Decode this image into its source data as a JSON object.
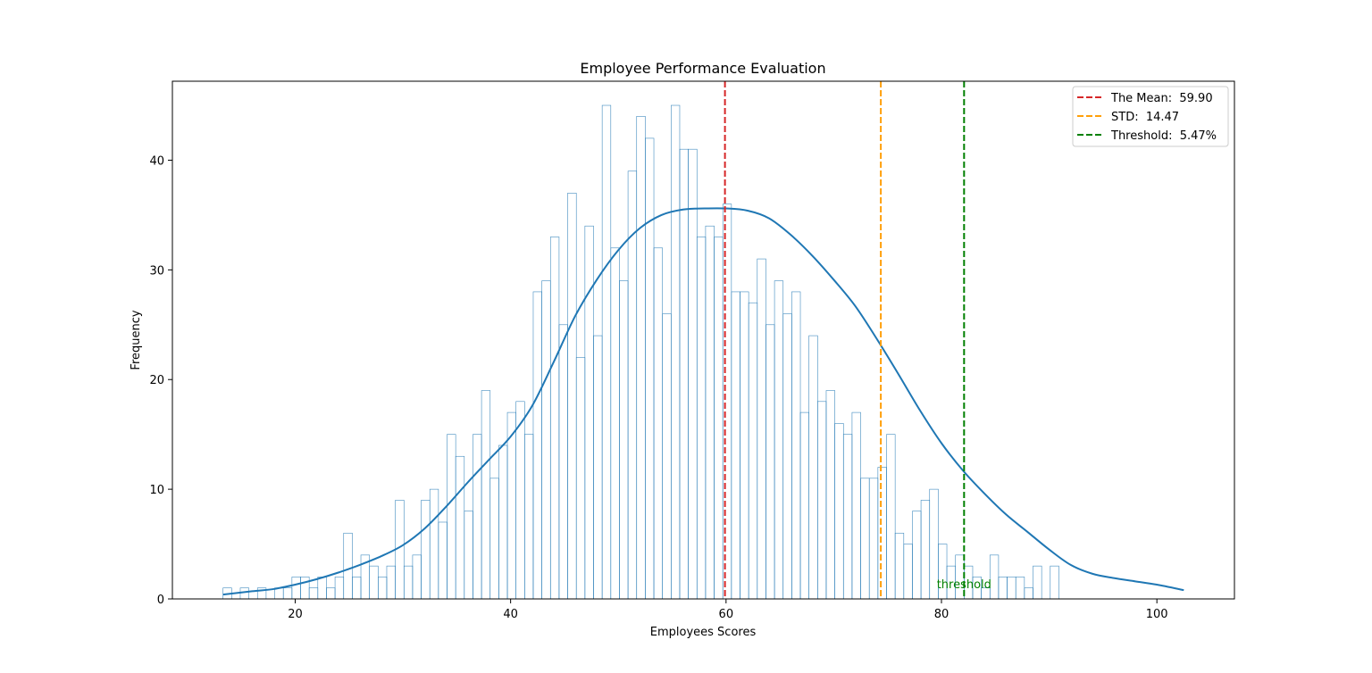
{
  "chart_data": {
    "type": "bar",
    "title": "Employee Performance Evaluation",
    "xlabel": "Employees Scores",
    "ylabel": "Frequency",
    "xlim": [
      8.6,
      107.2
    ],
    "ylim": [
      0,
      47.2
    ],
    "x_ticks": [
      20,
      40,
      60,
      80,
      100
    ],
    "y_ticks": [
      0,
      10,
      20,
      30,
      40
    ],
    "bins": {
      "start": 13.3,
      "width": 0.8,
      "counts": [
        1,
        0,
        1,
        0,
        1,
        0,
        1,
        1,
        2,
        2,
        1,
        2,
        1,
        2,
        6,
        2,
        4,
        3,
        2,
        3,
        9,
        3,
        4,
        9,
        10,
        7,
        15,
        13,
        8,
        15,
        19,
        11,
        14,
        17,
        18,
        15,
        28,
        29,
        33,
        25,
        37,
        22,
        34,
        24,
        45,
        32,
        29,
        39,
        44,
        42,
        32,
        26,
        45,
        41,
        41,
        33,
        34,
        33,
        36,
        28,
        28,
        27,
        31,
        25,
        29,
        26,
        28,
        17,
        24,
        18,
        19,
        16,
        15,
        17,
        11,
        11,
        12,
        15,
        6,
        5,
        8,
        9,
        10,
        5,
        3,
        4,
        3,
        2,
        1,
        4,
        2,
        2,
        2,
        1,
        3,
        0,
        3
      ]
    },
    "bar_color": "#1f77b4",
    "kde": {
      "color": "#1f77b4",
      "x": [
        13.3,
        16,
        18,
        20,
        22,
        24,
        26,
        28,
        30,
        32,
        34,
        36,
        38,
        40,
        42,
        44,
        46,
        48,
        50,
        52,
        54,
        56,
        58,
        60,
        62,
        64,
        66,
        68,
        70,
        72,
        74,
        76,
        78,
        80,
        82,
        84,
        86,
        88,
        90,
        92,
        94,
        96,
        98,
        100,
        102.5
      ],
      "y": [
        0.4,
        0.7,
        0.9,
        1.3,
        1.8,
        2.4,
        3.1,
        3.9,
        4.9,
        6.4,
        8.4,
        10.6,
        12.7,
        14.8,
        17.6,
        21.6,
        25.8,
        29.1,
        31.8,
        33.8,
        35.0,
        35.5,
        35.6,
        35.6,
        35.4,
        34.7,
        33.2,
        31.3,
        29.1,
        26.7,
        23.7,
        20.5,
        17.2,
        14.2,
        11.7,
        9.6,
        7.7,
        6.1,
        4.5,
        3.1,
        2.3,
        1.9,
        1.6,
        1.3,
        0.8
      ]
    },
    "vlines": [
      {
        "label": "The Mean:  59.90",
        "x": 59.9,
        "color": "#d62728"
      },
      {
        "label": "STD:  14.47",
        "x": 74.37,
        "color": "#ff9f0a"
      },
      {
        "label": "Threshold:  5.47%",
        "x": 82.1,
        "color": "#008000"
      }
    ],
    "legend_position": "top-right",
    "annotation": {
      "text": "threshold",
      "x": 82.1,
      "y": 1.4,
      "color": "#008000"
    }
  }
}
